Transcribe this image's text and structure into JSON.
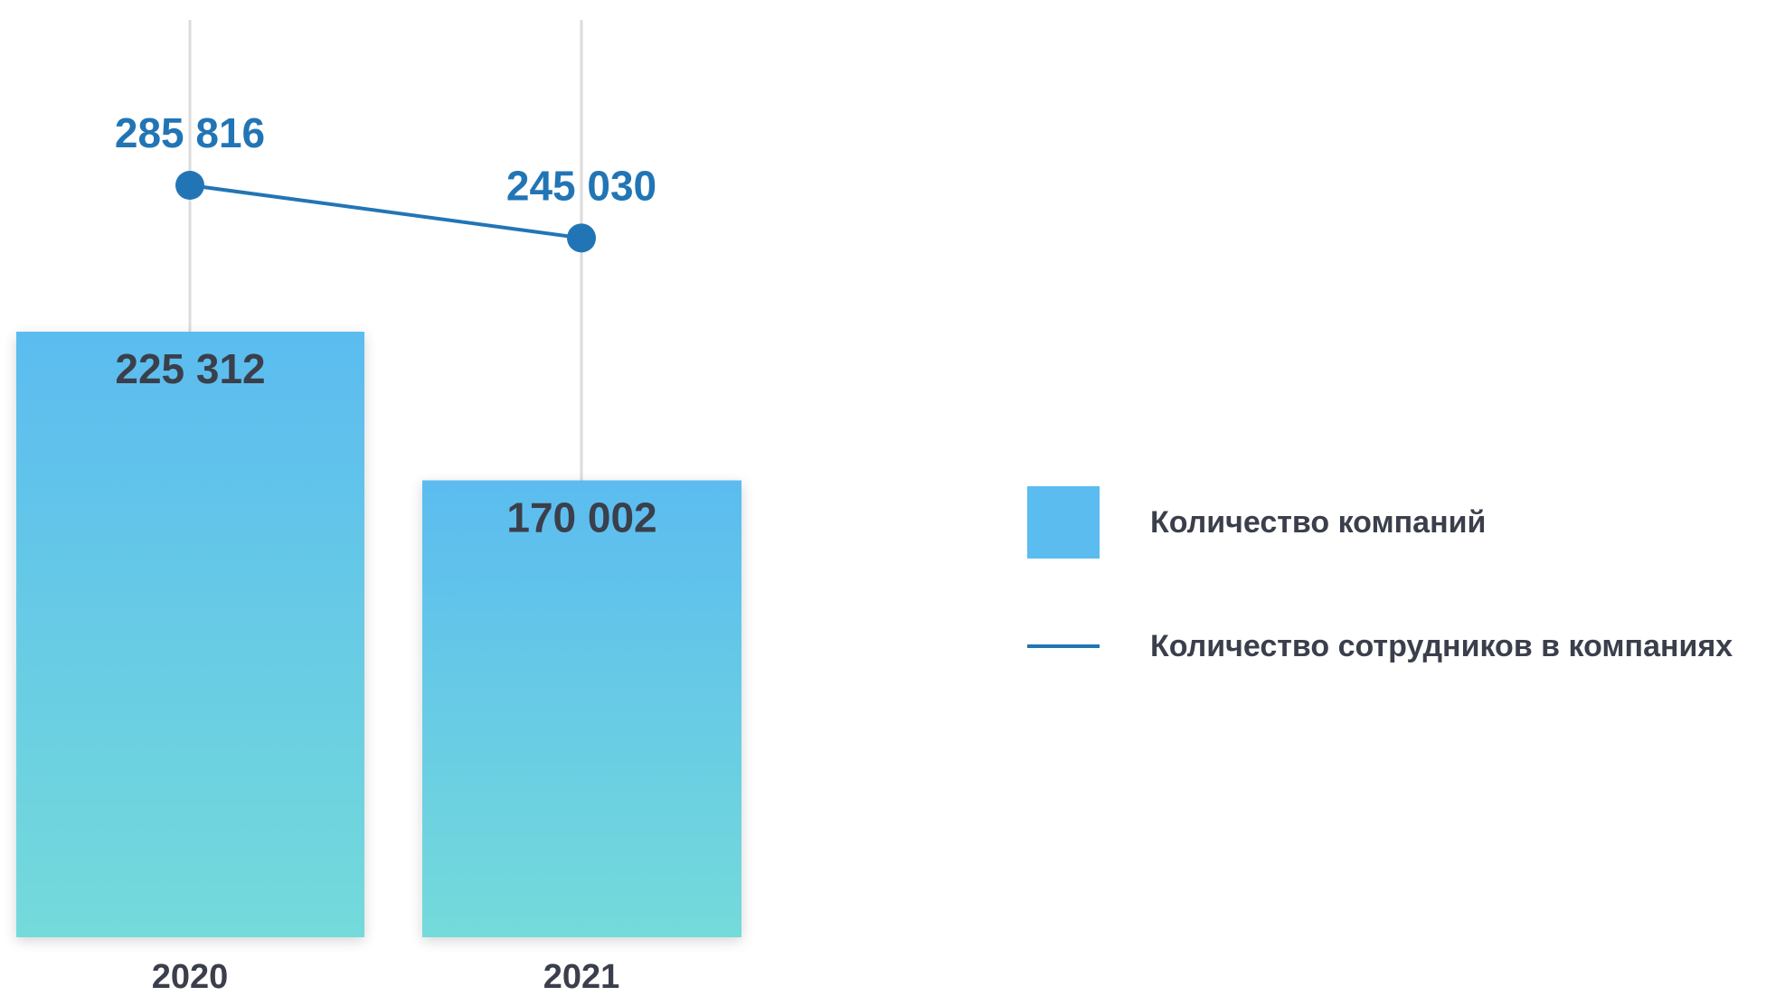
{
  "chart_data": {
    "type": "bar",
    "categories": [
      "2020",
      "2021"
    ],
    "series": [
      {
        "name": "Количество компаний",
        "type": "bar",
        "values": [
          225312,
          170002
        ],
        "labels": [
          "225 312",
          "170 002"
        ],
        "color": "#5bbcf0",
        "color_bottom": "#74dada"
      },
      {
        "name": "Количество сотрудников в компаниях",
        "type": "line",
        "values": [
          285816,
          245030
        ],
        "labels": [
          "285 816",
          "245 030"
        ],
        "color": "#2275b5"
      }
    ],
    "legend_position": "right",
    "grid": false
  }
}
